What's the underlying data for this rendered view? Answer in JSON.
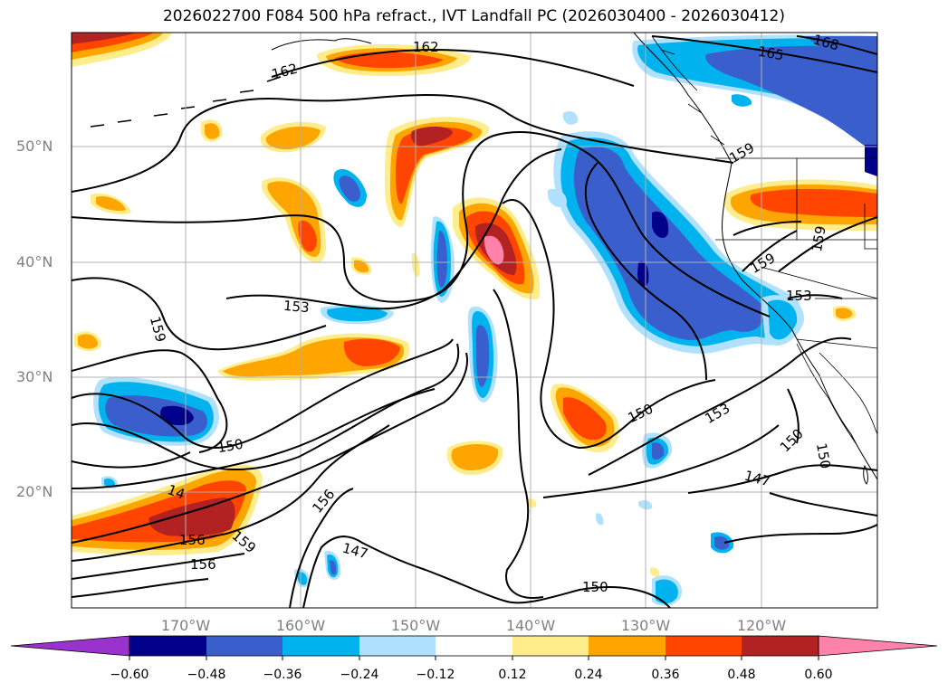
{
  "title": "2026022700 F084 500 hPa refract., IVT Landfall PC (2026030400 - 2026030412)",
  "lat_labels": [
    "50°N",
    "40°N",
    "30°N",
    "20°N"
  ],
  "lon_labels": [
    "170°W",
    "160°W",
    "150°W",
    "140°W",
    "130°W",
    "120°W"
  ],
  "contour_labels": [
    "162",
    "162",
    "165",
    "168",
    "159",
    "159",
    "159",
    "153",
    "153",
    "159",
    "150",
    "153",
    "150",
    "150",
    "150",
    "147",
    "147",
    "156",
    "156",
    "156",
    "159",
    "14",
    "150"
  ],
  "colorbar": {
    "ticks": [
      "−0.60",
      "−0.48",
      "−0.36",
      "−0.24",
      "−0.12",
      "0.12",
      "0.24",
      "0.36",
      "0.48",
      "0.60"
    ],
    "colors": [
      "#9a32cd",
      "#00008b",
      "#3a5fcd",
      "#00b2ee",
      "#b0e2ff",
      "#ffffff",
      "#ffec8b",
      "#ffa500",
      "#ff4500",
      "#b22222",
      "#ff82ab"
    ]
  }
}
